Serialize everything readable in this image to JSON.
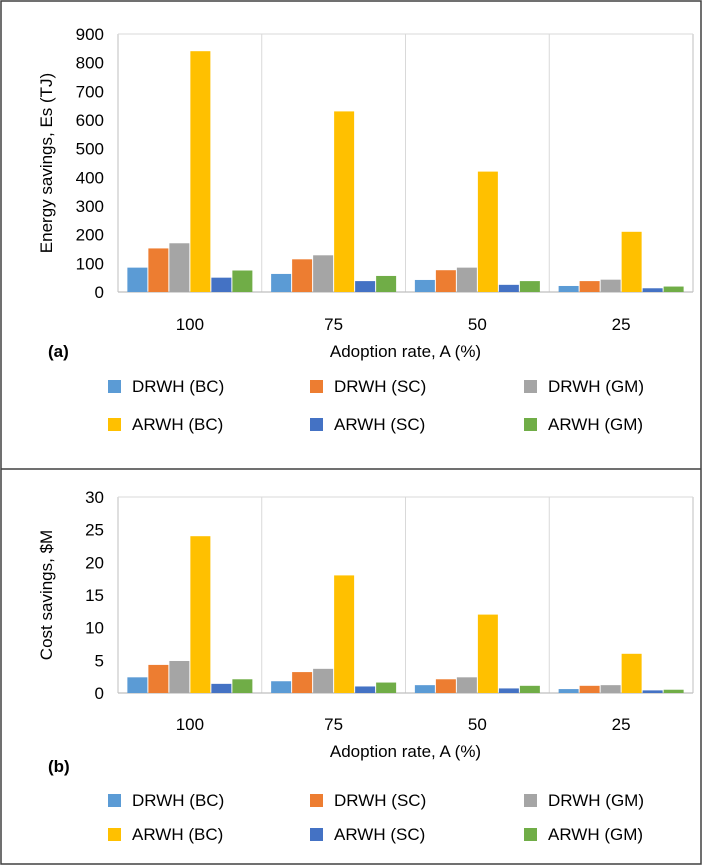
{
  "colors": {
    "DRWH (BC)": "#5B9BD5",
    "DRWH (SC)": "#ED7D31",
    "DRWH (GM)": "#A5A5A5",
    "ARWH (BC)": "#FFC000",
    "ARWH (SC)": "#4472C4",
    "ARWH (GM)": "#70AD47",
    "grid": "#d9d9d9",
    "axis": "#bfbfbf",
    "frame": "#404040"
  },
  "chart_data": [
    {
      "panel_label": "(a)",
      "type": "bar",
      "xlabel": "Adoption rate, A (%)",
      "ylabel": "Energy savings, Es (TJ)",
      "ylim": [
        0,
        900
      ],
      "yticks": [
        0,
        100,
        200,
        300,
        400,
        500,
        600,
        700,
        800,
        900
      ],
      "categories": [
        "100",
        "75",
        "50",
        "25"
      ],
      "grid": "vertical category separators",
      "legend_position": "bottom",
      "series": [
        {
          "name": "DRWH (BC)",
          "values": [
            85,
            63,
            42,
            21
          ]
        },
        {
          "name": "DRWH (SC)",
          "values": [
            152,
            114,
            76,
            38
          ]
        },
        {
          "name": "DRWH (GM)",
          "values": [
            170,
            128,
            85,
            43
          ]
        },
        {
          "name": "ARWH (BC)",
          "values": [
            840,
            630,
            420,
            210
          ]
        },
        {
          "name": "ARWH (SC)",
          "values": [
            50,
            38,
            25,
            13
          ]
        },
        {
          "name": "ARWH (GM)",
          "values": [
            75,
            56,
            38,
            19
          ]
        }
      ]
    },
    {
      "panel_label": "(b)",
      "type": "bar",
      "xlabel": "Adoption rate, A (%)",
      "ylabel": "Cost savings, $M",
      "ylim": [
        0,
        30
      ],
      "yticks": [
        0,
        5,
        10,
        15,
        20,
        25,
        30
      ],
      "categories": [
        "100",
        "75",
        "50",
        "25"
      ],
      "grid": "vertical category separators",
      "legend_position": "bottom",
      "series": [
        {
          "name": "DRWH (BC)",
          "values": [
            2.4,
            1.8,
            1.2,
            0.6
          ]
        },
        {
          "name": "DRWH (SC)",
          "values": [
            4.3,
            3.2,
            2.1,
            1.1
          ]
        },
        {
          "name": "DRWH (GM)",
          "values": [
            4.9,
            3.7,
            2.4,
            1.2
          ]
        },
        {
          "name": "ARWH (BC)",
          "values": [
            24,
            18,
            12,
            6
          ]
        },
        {
          "name": "ARWH (SC)",
          "values": [
            1.4,
            1.0,
            0.7,
            0.4
          ]
        },
        {
          "name": "ARWH (GM)",
          "values": [
            2.1,
            1.6,
            1.1,
            0.5
          ]
        }
      ]
    }
  ]
}
